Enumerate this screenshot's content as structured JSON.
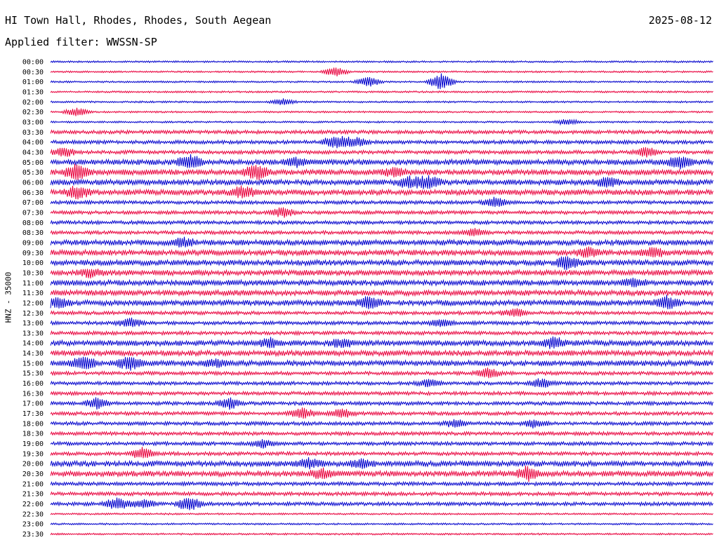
{
  "header": {
    "station": "HI Town Hall, Rhodes, Rhodes, South Aegean",
    "date": "2025-08-12",
    "filter": "Applied filter: WWSSN-SP"
  },
  "chart_data": {
    "type": "line",
    "title": "HI Town Hall, Rhodes, Rhodes, South Aegean",
    "date": "2025-08-12",
    "filter": "Applied filter: WWSSN-SP",
    "ylabel": "HNZ - 35000",
    "xlabel": "",
    "row_labels": [
      "00:00",
      "00:30",
      "01:00",
      "01:30",
      "02:00",
      "02:30",
      "03:00",
      "03:30",
      "04:00",
      "04:30",
      "05:00",
      "05:30",
      "06:00",
      "06:30",
      "07:00",
      "07:30",
      "08:00",
      "08:30",
      "09:00",
      "09:30",
      "10:00",
      "10:30",
      "11:00",
      "11:30",
      "12:00",
      "12:30",
      "13:00",
      "13:30",
      "14:00",
      "14:30",
      "15:00",
      "15:30",
      "16:00",
      "16:30",
      "17:00",
      "17:30",
      "18:00",
      "18:30",
      "19:00",
      "19:30",
      "20:00",
      "20:30",
      "21:00",
      "21:30",
      "22:00",
      "22:30",
      "23:00",
      "23:30"
    ],
    "colors": [
      "#0000cc",
      "#e8003c"
    ],
    "baseline_noise": [
      1,
      1,
      1,
      1,
      1,
      1,
      1,
      2,
      2,
      2,
      3,
      3,
      3,
      3,
      2,
      2,
      2,
      2,
      3,
      3,
      3,
      3,
      3,
      3,
      3,
      2,
      2,
      2,
      3,
      3,
      3,
      2,
      2,
      2,
      2,
      2,
      2,
      2,
      2,
      2,
      3,
      3,
      2,
      2,
      2,
      1,
      1,
      1
    ],
    "events": [
      {
        "row": 1,
        "t": 0.43,
        "amp": 6
      },
      {
        "row": 2,
        "t": 0.48,
        "amp": 7
      },
      {
        "row": 2,
        "t": 0.59,
        "amp": 12
      },
      {
        "row": 4,
        "t": 0.35,
        "amp": 5
      },
      {
        "row": 5,
        "t": 0.04,
        "amp": 6
      },
      {
        "row": 6,
        "t": 0.78,
        "amp": 4
      },
      {
        "row": 8,
        "t": 0.43,
        "amp": 9
      },
      {
        "row": 8,
        "t": 0.46,
        "amp": 7
      },
      {
        "row": 9,
        "t": 0.02,
        "amp": 6
      },
      {
        "row": 9,
        "t": 0.9,
        "amp": 7
      },
      {
        "row": 10,
        "t": 0.21,
        "amp": 10
      },
      {
        "row": 10,
        "t": 0.37,
        "amp": 6
      },
      {
        "row": 10,
        "t": 0.95,
        "amp": 8
      },
      {
        "row": 11,
        "t": 0.04,
        "amp": 11
      },
      {
        "row": 11,
        "t": 0.31,
        "amp": 10
      },
      {
        "row": 11,
        "t": 0.52,
        "amp": 5
      },
      {
        "row": 12,
        "t": 0.54,
        "amp": 7
      },
      {
        "row": 12,
        "t": 0.57,
        "amp": 9
      },
      {
        "row": 12,
        "t": 0.84,
        "amp": 6
      },
      {
        "row": 13,
        "t": 0.04,
        "amp": 8
      },
      {
        "row": 13,
        "t": 0.29,
        "amp": 8
      },
      {
        "row": 14,
        "t": 0.67,
        "amp": 7
      },
      {
        "row": 15,
        "t": 0.35,
        "amp": 6
      },
      {
        "row": 17,
        "t": 0.64,
        "amp": 5
      },
      {
        "row": 18,
        "t": 0.2,
        "amp": 5
      },
      {
        "row": 19,
        "t": 0.81,
        "amp": 6
      },
      {
        "row": 19,
        "t": 0.91,
        "amp": 6
      },
      {
        "row": 20,
        "t": 0.78,
        "amp": 8
      },
      {
        "row": 21,
        "t": 0.06,
        "amp": 5
      },
      {
        "row": 22,
        "t": 0.88,
        "amp": 5
      },
      {
        "row": 24,
        "t": 0.01,
        "amp": 8
      },
      {
        "row": 24,
        "t": 0.48,
        "amp": 8
      },
      {
        "row": 24,
        "t": 0.93,
        "amp": 9
      },
      {
        "row": 25,
        "t": 0.7,
        "amp": 6
      },
      {
        "row": 26,
        "t": 0.12,
        "amp": 6
      },
      {
        "row": 26,
        "t": 0.59,
        "amp": 5
      },
      {
        "row": 28,
        "t": 0.33,
        "amp": 6
      },
      {
        "row": 28,
        "t": 0.44,
        "amp": 5
      },
      {
        "row": 28,
        "t": 0.76,
        "amp": 7
      },
      {
        "row": 30,
        "t": 0.05,
        "amp": 9
      },
      {
        "row": 30,
        "t": 0.12,
        "amp": 9
      },
      {
        "row": 30,
        "t": 0.25,
        "amp": 5
      },
      {
        "row": 31,
        "t": 0.66,
        "amp": 7
      },
      {
        "row": 32,
        "t": 0.57,
        "amp": 5
      },
      {
        "row": 32,
        "t": 0.74,
        "amp": 6
      },
      {
        "row": 34,
        "t": 0.07,
        "amp": 7
      },
      {
        "row": 34,
        "t": 0.27,
        "amp": 7
      },
      {
        "row": 35,
        "t": 0.38,
        "amp": 7
      },
      {
        "row": 35,
        "t": 0.44,
        "amp": 6
      },
      {
        "row": 36,
        "t": 0.61,
        "amp": 5
      },
      {
        "row": 36,
        "t": 0.73,
        "amp": 5
      },
      {
        "row": 38,
        "t": 0.32,
        "amp": 5
      },
      {
        "row": 39,
        "t": 0.14,
        "amp": 8
      },
      {
        "row": 40,
        "t": 0.39,
        "amp": 6
      },
      {
        "row": 40,
        "t": 0.47,
        "amp": 6
      },
      {
        "row": 41,
        "t": 0.41,
        "amp": 7
      },
      {
        "row": 41,
        "t": 0.72,
        "amp": 9
      },
      {
        "row": 44,
        "t": 0.1,
        "amp": 8
      },
      {
        "row": 44,
        "t": 0.14,
        "amp": 6
      },
      {
        "row": 44,
        "t": 0.21,
        "amp": 10
      }
    ]
  }
}
